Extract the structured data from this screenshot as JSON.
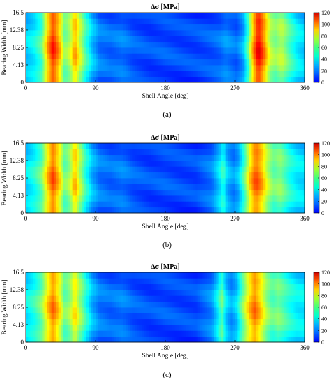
{
  "chart_data": [
    {
      "type": "heatmap",
      "panel_label": "(a)",
      "title": "Δσ [MPa]",
      "xlabel": "Shell Angle [deg]",
      "ylabel": "Bearing Width [mm]",
      "xlim": [
        0,
        360
      ],
      "ylim": [
        0,
        16.5
      ],
      "x_ticks": [
        "0",
        "90",
        "180",
        "270",
        "360"
      ],
      "y_ticks": [
        "0",
        "4.13",
        "8.25",
        "12.38",
        "16.5"
      ],
      "colorbar": {
        "range": [
          0,
          120
        ],
        "ticks": [
          "0",
          "20",
          "40",
          "60",
          "80",
          "100",
          "120"
        ],
        "colormap": "jet"
      },
      "profile": {
        "angle_deg": [
          0,
          10,
          20,
          28,
          35,
          42,
          50,
          58,
          63,
          68,
          75,
          85,
          95,
          110,
          125,
          140,
          160,
          180,
          200,
          220,
          240,
          250,
          258,
          265,
          272,
          280,
          287,
          293,
          300,
          307,
          315,
          322,
          330,
          340,
          350,
          360
        ],
        "delta_sigma_mpa": [
          40,
          45,
          55,
          85,
          102,
          88,
          60,
          70,
          88,
          75,
          58,
          40,
          30,
          28,
          30,
          26,
          24,
          25,
          24,
          24,
          26,
          28,
          32,
          30,
          28,
          35,
          55,
          85,
          108,
          92,
          68,
          62,
          68,
          55,
          45,
          40
        ]
      }
    },
    {
      "type": "heatmap",
      "panel_label": "(b)",
      "title": "Δσ [MPa]",
      "xlabel": "Shell Angle [deg]",
      "ylabel": "Bearing Width [mm]",
      "xlim": [
        0,
        360
      ],
      "ylim": [
        0,
        16.5
      ],
      "x_ticks": [
        "0",
        "90",
        "180",
        "270",
        "360"
      ],
      "y_ticks": [
        "0",
        "4.13",
        "8.25",
        "12.38",
        "16.5"
      ],
      "colorbar": {
        "range": [
          0,
          120
        ],
        "ticks": [
          "0",
          "20",
          "40",
          "60",
          "80",
          "100",
          "120"
        ],
        "colormap": "jet"
      },
      "profile": {
        "angle_deg": [
          0,
          10,
          20,
          28,
          35,
          42,
          50,
          58,
          63,
          68,
          75,
          85,
          95,
          110,
          125,
          140,
          160,
          180,
          200,
          220,
          240,
          250,
          255,
          260,
          268,
          275,
          283,
          290,
          297,
          304,
          312,
          320,
          328,
          340,
          350,
          360
        ],
        "delta_sigma_mpa": [
          42,
          48,
          58,
          82,
          96,
          82,
          58,
          68,
          86,
          72,
          55,
          38,
          30,
          28,
          30,
          26,
          24,
          25,
          24,
          24,
          30,
          42,
          52,
          38,
          32,
          38,
          58,
          82,
          96,
          86,
          68,
          58,
          62,
          50,
          44,
          42
        ]
      }
    },
    {
      "type": "heatmap",
      "panel_label": "(c)",
      "title": "Δσ [MPa]",
      "xlabel": "Shell Angle [deg]",
      "ylabel": "Bearing Width [mm]",
      "xlim": [
        0,
        360
      ],
      "ylim": [
        0,
        16.5
      ],
      "x_ticks": [
        "0",
        "90",
        "180",
        "270",
        "360"
      ],
      "y_ticks": [
        "0",
        "4.13",
        "8.25",
        "12.38",
        "16.5"
      ],
      "colorbar": {
        "range": [
          0,
          120
        ],
        "ticks": [
          "0",
          "20",
          "40",
          "60",
          "80",
          "100",
          "120"
        ],
        "colormap": "jet"
      },
      "profile": {
        "angle_deg": [
          0,
          10,
          20,
          28,
          35,
          42,
          50,
          58,
          63,
          68,
          75,
          85,
          95,
          110,
          125,
          140,
          160,
          180,
          200,
          220,
          240,
          248,
          253,
          258,
          265,
          272,
          280,
          288,
          295,
          302,
          310,
          318,
          326,
          340,
          350,
          360
        ],
        "delta_sigma_mpa": [
          44,
          50,
          60,
          80,
          92,
          80,
          58,
          66,
          80,
          68,
          55,
          38,
          30,
          28,
          30,
          26,
          24,
          25,
          24,
          24,
          32,
          45,
          58,
          42,
          34,
          40,
          60,
          80,
          92,
          82,
          65,
          56,
          60,
          50,
          45,
          44
        ]
      }
    }
  ]
}
